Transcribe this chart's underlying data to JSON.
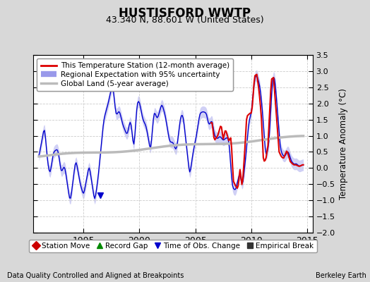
{
  "title": "HUSTISFORD WWTP",
  "subtitle": "43.340 N, 88.601 W (United States)",
  "ylabel": "Temperature Anomaly (°C)",
  "footer_left": "Data Quality Controlled and Aligned at Breakpoints",
  "footer_right": "Berkeley Earth",
  "xlim": [
    1990.5,
    2015.5
  ],
  "ylim": [
    -2.0,
    3.5
  ],
  "yticks": [
    -2,
    -1.5,
    -1,
    -0.5,
    0,
    0.5,
    1,
    1.5,
    2,
    2.5,
    3,
    3.5
  ],
  "xticks": [
    1995,
    2000,
    2005,
    2010,
    2015
  ],
  "bg_color": "#d8d8d8",
  "plot_bg_color": "#ffffff",
  "grid_color": "#cccccc",
  "legend_labels": [
    "This Temperature Station (12-month average)",
    "Regional Expectation with 95% uncertainty",
    "Global Land (5-year average)"
  ],
  "legend2_items": [
    {
      "marker": "D",
      "color": "#cc0000",
      "label": "Station Move"
    },
    {
      "marker": "^",
      "color": "#008800",
      "label": "Record Gap"
    },
    {
      "marker": "v",
      "color": "#0000cc",
      "label": "Time of Obs. Change"
    },
    {
      "marker": "s",
      "color": "#333333",
      "label": "Empirical Break"
    }
  ],
  "station_color": "#dd0000",
  "regional_color": "#0000cc",
  "regional_fill_color": "#aaaaee",
  "global_color": "#bbbbbb",
  "obs_change_x": 1996.5,
  "obs_change_y": -0.85
}
